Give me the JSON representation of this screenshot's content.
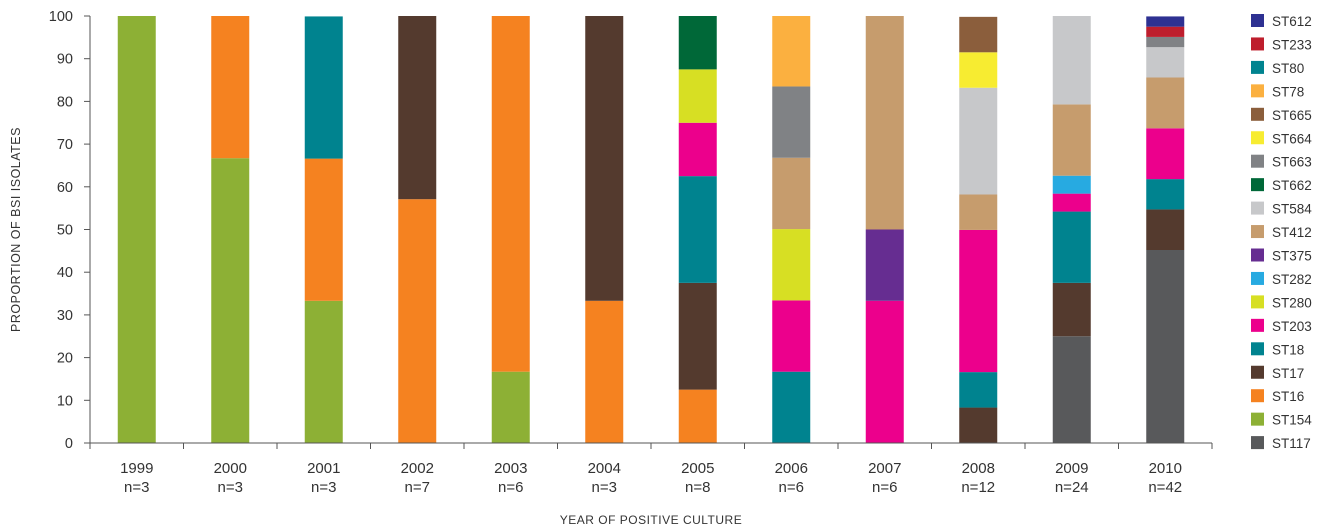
{
  "chart_data": {
    "type": "bar",
    "stacked": true,
    "title": "",
    "xlabel": "YEAR OF POSITIVE CULTURE",
    "ylabel": "PROPORTION OF BSI ISOLATES",
    "ylim": [
      0,
      100
    ],
    "yticks": [
      0,
      10,
      20,
      30,
      40,
      50,
      60,
      70,
      80,
      90,
      100
    ],
    "categories": [
      "1999",
      "2000",
      "2001",
      "2002",
      "2003",
      "2004",
      "2005",
      "2006",
      "2007",
      "2008",
      "2009",
      "2010"
    ],
    "sample_sizes": [
      "n=3",
      "n=3",
      "n=3",
      "n=7",
      "n=6",
      "n=3",
      "n=8",
      "n=6",
      "n=6",
      "n=12",
      "n=24",
      "n=42"
    ],
    "legend_position": "right",
    "grid": false,
    "series": [
      {
        "name": "ST117",
        "color": "#58595b",
        "values": [
          0,
          0,
          0,
          0,
          0,
          0,
          0,
          0,
          0,
          0,
          25.0,
          45.2
        ]
      },
      {
        "name": "ST154",
        "color": "#8db035",
        "values": [
          100,
          66.7,
          33.3,
          0,
          16.7,
          0,
          0,
          0,
          0,
          0,
          0,
          0
        ]
      },
      {
        "name": "ST16",
        "color": "#f58220",
        "values": [
          0,
          33.3,
          33.3,
          57.1,
          83.3,
          33.3,
          12.5,
          0,
          0,
          0,
          0,
          0
        ]
      },
      {
        "name": "ST17",
        "color": "#543a2e",
        "values": [
          0,
          0,
          0,
          42.9,
          0,
          66.7,
          25.0,
          0,
          0,
          8.3,
          12.5,
          9.5
        ]
      },
      {
        "name": "ST18",
        "color": "#00838f",
        "values": [
          0,
          0,
          33.3,
          0,
          0,
          0,
          25.0,
          16.7,
          0,
          8.3,
          16.7,
          7.1
        ]
      },
      {
        "name": "ST203",
        "color": "#ec008c",
        "values": [
          0,
          0,
          0,
          0,
          0,
          0,
          12.5,
          16.7,
          33.3,
          33.3,
          4.2,
          11.9
        ]
      },
      {
        "name": "ST280",
        "color": "#d7df23",
        "values": [
          0,
          0,
          0,
          0,
          0,
          0,
          12.5,
          16.7,
          0,
          0,
          0,
          0
        ]
      },
      {
        "name": "ST282",
        "color": "#27aae1",
        "values": [
          0,
          0,
          0,
          0,
          0,
          0,
          0,
          0,
          0,
          0,
          4.2,
          0
        ]
      },
      {
        "name": "ST375",
        "color": "#662d91",
        "values": [
          0,
          0,
          0,
          0,
          0,
          0,
          0,
          0,
          16.7,
          0,
          0,
          0
        ]
      },
      {
        "name": "ST412",
        "color": "#c69c6d",
        "values": [
          0,
          0,
          0,
          0,
          0,
          0,
          0,
          16.7,
          50.0,
          8.3,
          16.7,
          11.9
        ]
      },
      {
        "name": "ST584",
        "color": "#c7c8ca",
        "values": [
          0,
          0,
          0,
          0,
          0,
          0,
          0,
          0,
          0,
          25.0,
          20.8,
          7.1
        ]
      },
      {
        "name": "ST662",
        "color": "#006838",
        "values": [
          0,
          0,
          0,
          0,
          0,
          0,
          12.5,
          0,
          0,
          0,
          0,
          0
        ]
      },
      {
        "name": "ST663",
        "color": "#808285",
        "values": [
          0,
          0,
          0,
          0,
          0,
          0,
          0,
          16.7,
          0,
          0,
          0,
          2.4
        ]
      },
      {
        "name": "ST664",
        "color": "#f7ec31",
        "values": [
          0,
          0,
          0,
          0,
          0,
          0,
          0,
          0,
          0,
          8.3,
          0,
          0
        ]
      },
      {
        "name": "ST665",
        "color": "#8b5e3c",
        "values": [
          0,
          0,
          0,
          0,
          0,
          0,
          0,
          0,
          0,
          8.3,
          0,
          0
        ]
      },
      {
        "name": "ST78",
        "color": "#fbb040",
        "values": [
          0,
          0,
          0,
          0,
          0,
          0,
          0,
          16.7,
          0,
          0,
          0,
          0
        ]
      },
      {
        "name": "ST80",
        "color": "#00838f",
        "values": [
          0,
          0,
          0,
          0,
          0,
          0,
          0,
          0,
          0,
          0,
          0,
          0
        ]
      },
      {
        "name": "ST233",
        "color": "#be1e2d",
        "values": [
          0,
          0,
          0,
          0,
          0,
          0,
          0,
          0,
          0,
          0,
          0,
          2.4
        ]
      },
      {
        "name": "ST612",
        "color": "#2e3192",
        "values": [
          0,
          0,
          0,
          0,
          0,
          0,
          0,
          0,
          0,
          0,
          0,
          2.4
        ]
      }
    ]
  }
}
